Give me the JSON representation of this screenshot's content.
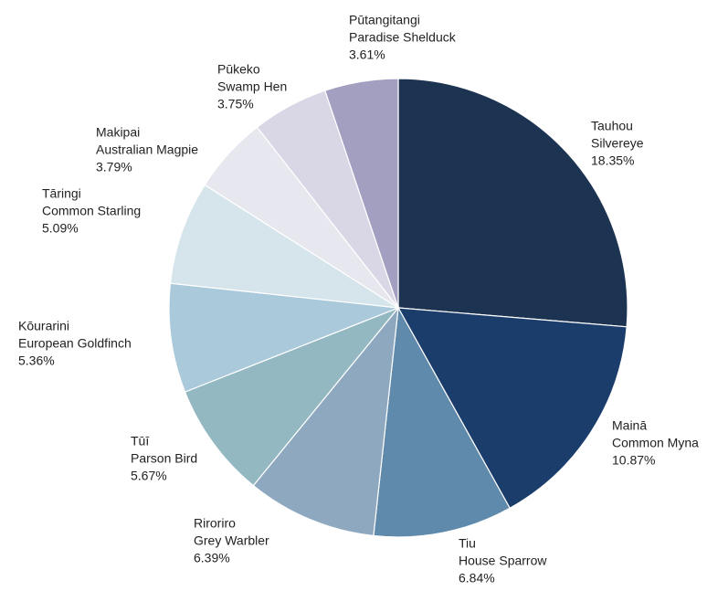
{
  "chart_data": {
    "type": "pie",
    "categories": [
      "Tauhou",
      "Mainā",
      "Tiu",
      "Riroriro",
      "Tūī",
      "Kōurarini",
      "Tāringi",
      "Makipai",
      "Pūkeko",
      "Pūtangitangi"
    ],
    "english_names": [
      "Silvereye",
      "Common Myna",
      "House Sparrow",
      "Grey Warbler",
      "Parson Bird",
      "European Goldfinch",
      "Common Starling",
      "Australian Magpie",
      "Swamp Hen",
      "Paradise Shelduck"
    ],
    "values": [
      18.35,
      10.87,
      6.84,
      6.39,
      5.67,
      5.36,
      5.09,
      3.79,
      3.75,
      3.61
    ],
    "value_labels": [
      "18.35%",
      "10.87%",
      "6.84%",
      "6.39%",
      "5.67%",
      "5.36%",
      "5.09%",
      "3.79%",
      "3.75%",
      "3.61%"
    ],
    "colors": [
      "#1d3352",
      "#1b3d6b",
      "#5f8aab",
      "#8ea8bf",
      "#94b8c2",
      "#aacadc",
      "#d6e5eb",
      "#e7e7ef",
      "#d9d7e5",
      "#a39fc1"
    ]
  }
}
